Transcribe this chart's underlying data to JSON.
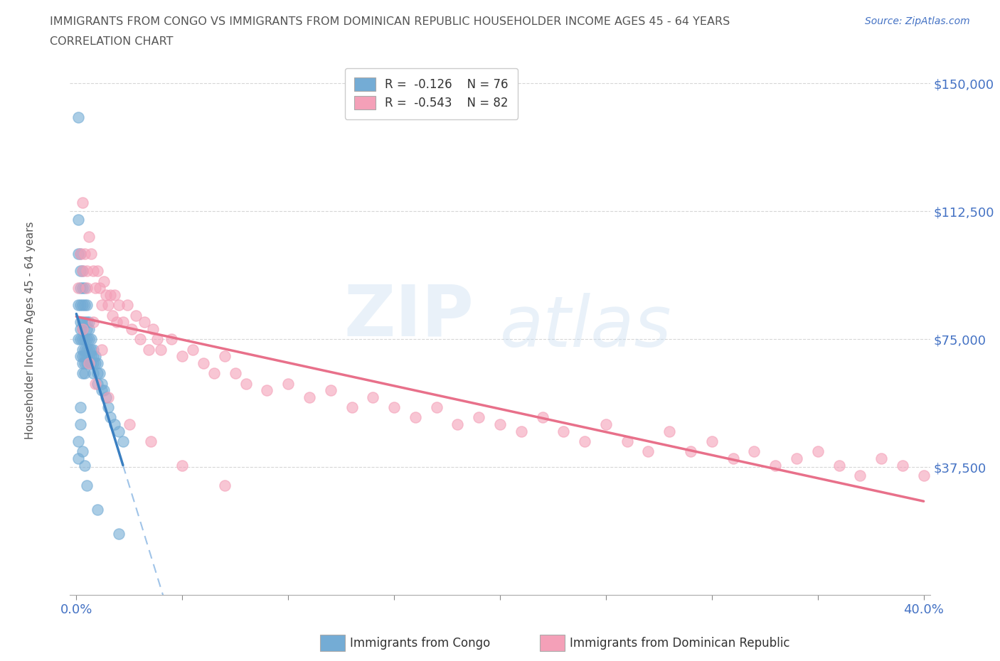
{
  "title_line1": "IMMIGRANTS FROM CONGO VS IMMIGRANTS FROM DOMINICAN REPUBLIC HOUSEHOLDER INCOME AGES 45 - 64 YEARS",
  "title_line2": "CORRELATION CHART",
  "source": "Source: ZipAtlas.com",
  "ylabel": "Householder Income Ages 45 - 64 years",
  "xlim": [
    0.0,
    0.4
  ],
  "ylim": [
    0,
    157000
  ],
  "yticks": [
    37500,
    75000,
    112500,
    150000
  ],
  "ytick_labels": [
    "$37,500",
    "$75,000",
    "$112,500",
    "$150,000"
  ],
  "xticks": [
    0.0,
    0.05,
    0.1,
    0.15,
    0.2,
    0.25,
    0.3,
    0.35,
    0.4
  ],
  "xtick_labels": [
    "0.0%",
    "",
    "",
    "",
    "",
    "",
    "",
    "",
    "40.0%"
  ],
  "congo_color": "#74acd5",
  "dr_color": "#f4a0b8",
  "congo_trend_color": "#3a7fc1",
  "dr_trend_color": "#e8708a",
  "dash_color": "#a0c4e8",
  "congo_R": -0.126,
  "congo_N": 76,
  "dr_R": -0.543,
  "dr_N": 82,
  "legend_label_congo": "Immigrants from Congo",
  "legend_label_dr": "Immigrants from Dominican Republic",
  "watermark_top": "ZIP",
  "watermark_bot": "atlas",
  "title_color": "#555555",
  "axis_label_color": "#555555",
  "tick_label_color": "#4472c4",
  "source_color": "#4472c4",
  "congo_scatter_x": [
    0.001,
    0.001,
    0.001,
    0.001,
    0.001,
    0.002,
    0.002,
    0.002,
    0.002,
    0.002,
    0.002,
    0.002,
    0.002,
    0.003,
    0.003,
    0.003,
    0.003,
    0.003,
    0.003,
    0.003,
    0.003,
    0.003,
    0.003,
    0.004,
    0.004,
    0.004,
    0.004,
    0.004,
    0.004,
    0.004,
    0.004,
    0.005,
    0.005,
    0.005,
    0.005,
    0.005,
    0.005,
    0.005,
    0.006,
    0.006,
    0.006,
    0.006,
    0.006,
    0.006,
    0.007,
    0.007,
    0.007,
    0.007,
    0.008,
    0.008,
    0.008,
    0.008,
    0.009,
    0.009,
    0.01,
    0.01,
    0.01,
    0.011,
    0.012,
    0.012,
    0.013,
    0.014,
    0.015,
    0.016,
    0.018,
    0.02,
    0.022,
    0.001,
    0.001,
    0.002,
    0.002,
    0.003,
    0.004,
    0.005,
    0.01,
    0.02
  ],
  "congo_scatter_y": [
    140000,
    110000,
    100000,
    85000,
    75000,
    100000,
    95000,
    90000,
    85000,
    80000,
    78000,
    75000,
    70000,
    95000,
    90000,
    85000,
    80000,
    78000,
    75000,
    72000,
    70000,
    68000,
    65000,
    90000,
    85000,
    80000,
    75000,
    72000,
    70000,
    68000,
    65000,
    85000,
    80000,
    78000,
    75000,
    72000,
    70000,
    68000,
    80000,
    78000,
    75000,
    72000,
    70000,
    68000,
    75000,
    72000,
    70000,
    68000,
    72000,
    70000,
    68000,
    65000,
    70000,
    68000,
    68000,
    65000,
    62000,
    65000,
    62000,
    60000,
    60000,
    58000,
    55000,
    52000,
    50000,
    48000,
    45000,
    45000,
    40000,
    55000,
    50000,
    42000,
    38000,
    32000,
    25000,
    18000
  ],
  "dr_scatter_x": [
    0.001,
    0.002,
    0.003,
    0.004,
    0.005,
    0.006,
    0.007,
    0.008,
    0.009,
    0.01,
    0.011,
    0.012,
    0.013,
    0.014,
    0.015,
    0.016,
    0.017,
    0.018,
    0.019,
    0.02,
    0.022,
    0.024,
    0.026,
    0.028,
    0.03,
    0.032,
    0.034,
    0.036,
    0.038,
    0.04,
    0.045,
    0.05,
    0.055,
    0.06,
    0.065,
    0.07,
    0.075,
    0.08,
    0.09,
    0.1,
    0.11,
    0.12,
    0.13,
    0.14,
    0.15,
    0.16,
    0.17,
    0.18,
    0.19,
    0.2,
    0.21,
    0.22,
    0.23,
    0.24,
    0.25,
    0.26,
    0.27,
    0.28,
    0.29,
    0.3,
    0.31,
    0.32,
    0.33,
    0.34,
    0.35,
    0.36,
    0.37,
    0.38,
    0.39,
    0.4,
    0.003,
    0.005,
    0.008,
    0.012,
    0.003,
    0.006,
    0.009,
    0.015,
    0.025,
    0.035,
    0.05,
    0.07
  ],
  "dr_scatter_y": [
    90000,
    100000,
    95000,
    100000,
    95000,
    105000,
    100000,
    95000,
    90000,
    95000,
    90000,
    85000,
    92000,
    88000,
    85000,
    88000,
    82000,
    88000,
    80000,
    85000,
    80000,
    85000,
    78000,
    82000,
    75000,
    80000,
    72000,
    78000,
    75000,
    72000,
    75000,
    70000,
    72000,
    68000,
    65000,
    70000,
    65000,
    62000,
    60000,
    62000,
    58000,
    60000,
    55000,
    58000,
    55000,
    52000,
    55000,
    50000,
    52000,
    50000,
    48000,
    52000,
    48000,
    45000,
    50000,
    45000,
    42000,
    48000,
    42000,
    45000,
    40000,
    42000,
    38000,
    40000,
    42000,
    38000,
    35000,
    40000,
    38000,
    35000,
    115000,
    90000,
    80000,
    72000,
    78000,
    68000,
    62000,
    58000,
    50000,
    45000,
    38000,
    32000
  ]
}
